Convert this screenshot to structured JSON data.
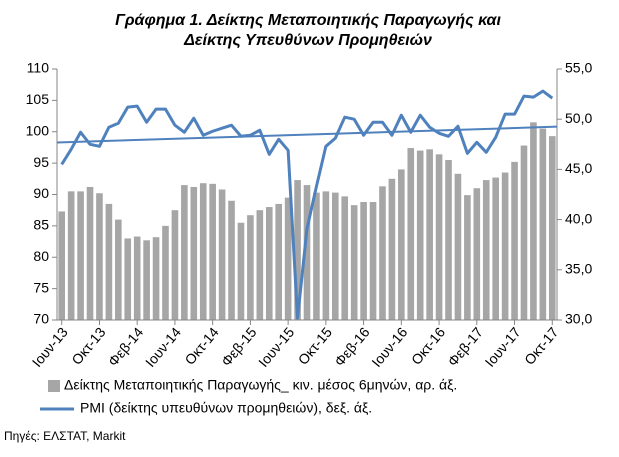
{
  "chart_data": {
    "type": "bar-line",
    "title": [
      "Γράφημα 1. Δείκτης Μεταποιητικής Παραγωγής και",
      "Δείκτης Υπευθύνων Προμηθειών"
    ],
    "categories": [
      "Ιουν-13",
      null,
      null,
      null,
      "Οκτ-13",
      null,
      null,
      null,
      "Φεβ-14",
      null,
      null,
      null,
      "Ιουν-14",
      null,
      null,
      null,
      "Οκτ-14",
      null,
      null,
      null,
      "Φεβ-15",
      null,
      null,
      null,
      "Ιουν-15",
      null,
      null,
      null,
      "Οκτ-15",
      null,
      null,
      null,
      "Φεβ-16",
      null,
      null,
      null,
      "Ιουν-16",
      null,
      null,
      null,
      "Οκτ-16",
      null,
      null,
      null,
      "Φεβ-17",
      null,
      null,
      null,
      "Ιουν-17",
      null,
      null,
      null,
      "Οκτ-17"
    ],
    "series": [
      {
        "name": "Δείκτης Μεταποιητικής Παραγωγής_ κιν. μέσος 6μηνών, αρ.  άξ.",
        "type": "bar",
        "color": "#a6a6a6",
        "axis": "y",
        "values": [
          87.3,
          90.5,
          90.5,
          91.2,
          90.2,
          88.5,
          86,
          83,
          83.3,
          82.7,
          83.2,
          85,
          87.5,
          91.5,
          91.2,
          91.8,
          91.7,
          90.8,
          89,
          85.5,
          86.7,
          87.5,
          88,
          88.5,
          89.5,
          92.3,
          91.5,
          90.3,
          90.5,
          90.3,
          89.7,
          88.3,
          88.8,
          88.8,
          91.3,
          92.5,
          94,
          97.4,
          97,
          97.2,
          96.4,
          95.5,
          93.3,
          89.9,
          91,
          92.3,
          92.7,
          93.5,
          95.2,
          97.8,
          101.5,
          100.5,
          99.3
        ]
      },
      {
        "name": "PMI (δείκτης υπευθύνων προμηθειών), δεξ. άξ.",
        "type": "line",
        "color": "#4f81bd",
        "axis": "y2",
        "trendline": true,
        "values": [
          45.5,
          47,
          48.7,
          47.5,
          47.3,
          49.2,
          49.6,
          51.2,
          51.3,
          49.7,
          51,
          51,
          49.4,
          48.7,
          50.1,
          48.4,
          48.8,
          49.1,
          49.4,
          48.3,
          48.4,
          48.9,
          46.5,
          48,
          46.9,
          30.2,
          39.1,
          43.3,
          47.3,
          48.1,
          50.2,
          50,
          48.4,
          49.7,
          49.7,
          48.4,
          50.4,
          48.7,
          50.4,
          49.2,
          48.6,
          48.3,
          49.3,
          46.6,
          47.7,
          46.7,
          48.2,
          50.5,
          50.5,
          52.3,
          52.2,
          52.8,
          52.1
        ]
      }
    ],
    "ylim": [
      70,
      110
    ],
    "yticks": [
      70,
      75,
      80,
      85,
      90,
      95,
      100,
      105,
      110
    ],
    "y2lim": [
      30,
      55
    ],
    "y2ticks": [
      {
        "value": 30,
        "label": "30,0"
      },
      {
        "value": 35,
        "label": "35,0"
      },
      {
        "value": 40,
        "label": "40,0"
      },
      {
        "value": 45,
        "label": "45,0"
      },
      {
        "value": 50,
        "label": "50,0"
      },
      {
        "value": 55,
        "label": "55,0"
      }
    ],
    "grid": false,
    "legend": "bottom",
    "source": "Πηγές: ΕΛΣΤΑΤ,  Markit"
  }
}
